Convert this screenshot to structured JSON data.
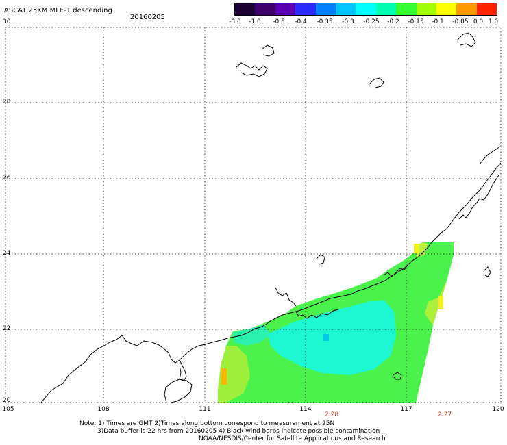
{
  "header": {
    "title": "ASCAT 25KM MLE-1 descending",
    "date": "20160205"
  },
  "colorbar": {
    "labels": [
      "-3.0",
      "-1.0",
      "-0.5",
      "-0.4",
      "-0.35",
      "-0.3",
      "-0.25",
      "-0.2",
      "-0.15",
      "-0.1",
      "-0.05",
      "0.0",
      "1.0"
    ],
    "colors": [
      "#1a0033",
      "#3d006b",
      "#5a00b0",
      "#2b2bff",
      "#0080ff",
      "#00c8ff",
      "#00ffff",
      "#00ffb0",
      "#33ff33",
      "#a0ff00",
      "#ffff00",
      "#ff9900",
      "#ff2200"
    ]
  },
  "axes": {
    "lat_labels": [
      "30",
      "28",
      "26",
      "24",
      "22",
      "20"
    ],
    "lon_labels": [
      "105",
      "108",
      "111",
      "114",
      "117",
      "120"
    ]
  },
  "times": {
    "left": "2:28",
    "right": "2:27"
  },
  "notes": {
    "line1": "Note: 1) Times are GMT 2)Times along bottom correspond to measurement at 25N",
    "line2": "3)Data buffer is 22 hrs from 20160205 4) Black wind barbs indicate possible contamination",
    "line3": "NOAA/NESDIS/Center for Satellite Applications and Research"
  }
}
